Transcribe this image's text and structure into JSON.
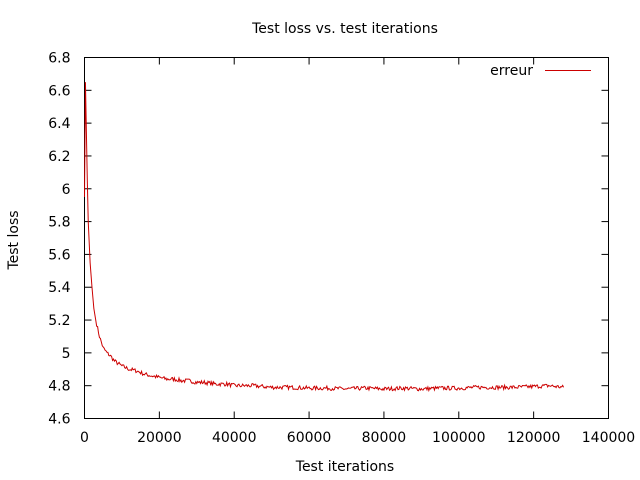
{
  "chart_data": {
    "type": "line",
    "title": "Test loss vs. test iterations",
    "xlabel": "Test iterations",
    "ylabel": "Test loss",
    "xlim": [
      0,
      140000
    ],
    "ylim": [
      4.6,
      6.8
    ],
    "x_ticks": [
      0,
      20000,
      40000,
      60000,
      80000,
      100000,
      120000,
      140000
    ],
    "y_ticks": [
      4.6,
      4.8,
      5,
      5.2,
      5.4,
      5.6,
      5.8,
      6,
      6.2,
      6.4,
      6.6,
      6.8
    ],
    "grid": false,
    "legend": "top-right",
    "series": [
      {
        "name": "erreur",
        "color": "#cc0000",
        "x": [
          0,
          250,
          500,
          750,
          1000,
          1500,
          2000,
          2500,
          3000,
          4000,
          5000,
          6000,
          7000,
          8000,
          10000,
          12000,
          14000,
          16000,
          18000,
          20000,
          22000,
          24000,
          26000,
          28000,
          30000,
          32000,
          35000,
          38000,
          40000,
          45000,
          50000,
          55000,
          60000,
          65000,
          70000,
          75000,
          80000,
          85000,
          90000,
          95000,
          100000,
          105000,
          110000,
          115000,
          120000,
          124000,
          128000
        ],
        "y": [
          5.95,
          6.65,
          6.35,
          6.05,
          5.8,
          5.55,
          5.4,
          5.27,
          5.2,
          5.1,
          5.03,
          5.0,
          4.98,
          4.95,
          4.92,
          4.9,
          4.89,
          4.87,
          4.86,
          4.85,
          4.84,
          4.84,
          4.83,
          4.83,
          4.82,
          4.82,
          4.81,
          4.81,
          4.8,
          4.8,
          4.79,
          4.79,
          4.785,
          4.785,
          4.78,
          4.785,
          4.78,
          4.785,
          4.78,
          4.785,
          4.785,
          4.79,
          4.79,
          4.79,
          4.795,
          4.8,
          4.79
        ]
      }
    ]
  }
}
